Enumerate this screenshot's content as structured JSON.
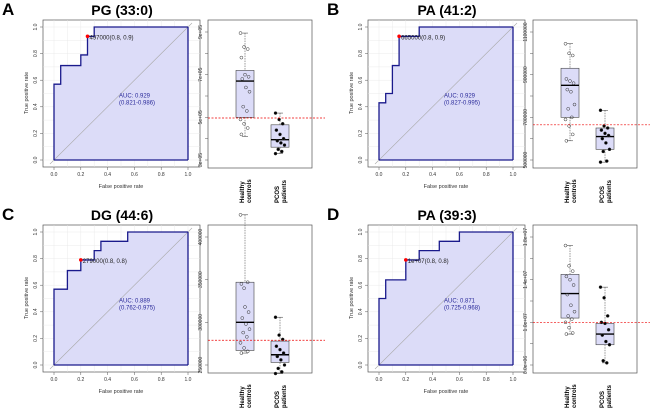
{
  "chart_data": [
    {
      "panel": "A",
      "title": "PG (33:0)",
      "type": "line",
      "roc": {
        "xlabel": "False positive rate",
        "ylabel": "True positive rate",
        "xlim": [
          0,
          1
        ],
        "ylim": [
          0,
          1
        ],
        "ticks": [
          "0.0",
          "0.2",
          "0.4",
          "0.6",
          "0.8",
          "1.0"
        ],
        "points": [
          [
            0,
            0
          ],
          [
            0,
            0.57
          ],
          [
            0.05,
            0.57
          ],
          [
            0.05,
            0.71
          ],
          [
            0.2,
            0.71
          ],
          [
            0.2,
            0.79
          ],
          [
            0.25,
            0.79
          ],
          [
            0.25,
            0.93
          ],
          [
            0.3,
            0.93
          ],
          [
            0.3,
            1
          ],
          [
            1,
            1
          ]
        ],
        "threshold_point": [
          0.25,
          0.93
        ],
        "threshold_label": "497000(0.8, 0.9)",
        "auc_label": "AUC: 0.929",
        "ci_label": "(0.821-0.986)",
        "line_color": "#1a1a8c",
        "fill_color": "#dcdcf8",
        "point_color": "#ff0000"
      },
      "box": {
        "type": "box",
        "ylim": [
          300000,
          900000
        ],
        "tick_values": [
          300000,
          400000,
          500000,
          600000,
          700000,
          800000,
          900000
        ],
        "tick_labels": [
          "3e+05",
          "",
          "5e+05",
          "",
          "7e+05",
          "",
          "9e+05"
        ],
        "cutoff": 497000,
        "groups": [
          {
            "label1": "Healthy",
            "label2": "controls",
            "whisker_low": 410000,
            "q1": 500000,
            "median": 670000,
            "q3": 720000,
            "whisker_high": 895000,
            "filled": false,
            "points": [
              895000,
              830000,
              820000,
              780000,
              700000,
              690000,
              680000,
              640000,
              620000,
              550000,
              530000,
              490000,
              470000,
              450000,
              420000
            ]
          },
          {
            "label1": "PCOS",
            "label2": "patients",
            "whisker_low": 330000,
            "q1": 360000,
            "median": 395000,
            "q3": 465000,
            "whisker_high": 520000,
            "filled": true,
            "points": [
              520000,
              490000,
              470000,
              440000,
              420000,
              400000,
              390000,
              380000,
              370000,
              350000,
              340000,
              330000
            ]
          }
        ]
      }
    },
    {
      "panel": "B",
      "title": "PA (41:2)",
      "type": "line",
      "roc": {
        "xlabel": "False positive rate",
        "ylabel": "True positive rate",
        "xlim": [
          0,
          1
        ],
        "ylim": [
          0,
          1
        ],
        "ticks": [
          "0.0",
          "0.2",
          "0.4",
          "0.6",
          "0.8",
          "1.0"
        ],
        "points": [
          [
            0,
            0
          ],
          [
            0,
            0.43
          ],
          [
            0.05,
            0.43
          ],
          [
            0.05,
            0.5
          ],
          [
            0.1,
            0.5
          ],
          [
            0.1,
            0.71
          ],
          [
            0.15,
            0.71
          ],
          [
            0.15,
            0.93
          ],
          [
            0.3,
            0.93
          ],
          [
            0.3,
            1
          ],
          [
            1,
            1
          ]
        ],
        "threshold_point": [
          0.15,
          0.93
        ],
        "threshold_label": "665000(0.8, 0.9)",
        "auc_label": "AUC: 0.929",
        "ci_label": "(0.827-0.995)",
        "line_color": "#1a1a8c",
        "fill_color": "#dcdcf8",
        "point_color": "#ff0000"
      },
      "box": {
        "type": "box",
        "ylim": [
          500000,
          1100000
        ],
        "tick_values": [
          500000,
          600000,
          700000,
          800000,
          900000,
          1000000,
          1100000
        ],
        "tick_labels": [
          "500000",
          "",
          "700000",
          "",
          "900000",
          "",
          "1100000"
        ],
        "cutoff": 665000,
        "groups": [
          {
            "label1": "Healthy",
            "label2": "controls",
            "whisker_low": 590000,
            "q1": 700000,
            "median": 850000,
            "q3": 930000,
            "whisker_high": 1045000,
            "filled": false,
            "points": [
              1045000,
              1000000,
              990000,
              880000,
              870000,
              860000,
              830000,
              820000,
              760000,
              740000,
              700000,
              690000,
              660000,
              620000,
              590000
            ]
          },
          {
            "label1": "PCOS",
            "label2": "patients",
            "whisker_low": 490000,
            "q1": 550000,
            "median": 610000,
            "q3": 650000,
            "whisker_high": 733000,
            "filled": true,
            "points": [
              733000,
              660000,
              650000,
              640000,
              625000,
              615000,
              600000,
              580000,
              550000,
              540000,
              495000,
              490000
            ]
          }
        ]
      }
    },
    {
      "panel": "C",
      "title": "DG (44:6)",
      "type": "line",
      "roc": {
        "xlabel": "False positive rate",
        "ylabel": "True positive rate",
        "xlim": [
          0,
          1
        ],
        "ylim": [
          0,
          1
        ],
        "ticks": [
          "0.0",
          "0.2",
          "0.4",
          "0.6",
          "0.8",
          "1.0"
        ],
        "points": [
          [
            0,
            0
          ],
          [
            0,
            0.57
          ],
          [
            0.1,
            0.57
          ],
          [
            0.1,
            0.71
          ],
          [
            0.2,
            0.71
          ],
          [
            0.2,
            0.79
          ],
          [
            0.3,
            0.79
          ],
          [
            0.3,
            0.86
          ],
          [
            0.35,
            0.86
          ],
          [
            0.35,
            0.93
          ],
          [
            0.55,
            0.93
          ],
          [
            0.55,
            1
          ],
          [
            1,
            1
          ]
        ],
        "threshold_point": [
          0.2,
          0.79
        ],
        "threshold_label": "279000(0.8, 0.8)",
        "auc_label": "AUC: 0.889",
        "ci_label": "(0.762-0.975)",
        "line_color": "#1a1a8c",
        "fill_color": "#dcdcf8",
        "point_color": "#ff0000"
      },
      "box": {
        "type": "box",
        "ylim": [
          225000,
          425000
        ],
        "tick_values": [
          250000,
          300000,
          350000,
          400000
        ],
        "tick_labels": [
          "250000",
          "300000",
          "350000",
          "400000"
        ],
        "cutoff": 279000,
        "groups": [
          {
            "label1": "Healthy",
            "label2": "controls",
            "whisker_low": 264000,
            "q1": 267000,
            "median": 300000,
            "q3": 347000,
            "whisker_high": 426000,
            "filled": false,
            "points": [
              426000,
              340000,
              347000,
              345000,
              318000,
              312000,
              305000,
              298000,
              292000,
              288000,
              283000,
              276000,
              270000,
              266000,
              264000
            ]
          },
          {
            "label1": "PCOS",
            "label2": "patients",
            "whisker_low": 240000,
            "q1": 253000,
            "median": 262000,
            "q3": 278000,
            "whisker_high": 306000,
            "filled": true,
            "points": [
              306000,
              285000,
              280000,
              272000,
              268000,
              264000,
              260000,
              256000,
              250000,
              246000,
              242000,
              240000
            ]
          }
        ]
      }
    },
    {
      "panel": "D",
      "title": "PA (39:3)",
      "type": "line",
      "roc": {
        "xlabel": "False positive rate",
        "ylabel": "True positive rate",
        "xlim": [
          0,
          1
        ],
        "ylim": [
          0,
          1
        ],
        "ticks": [
          "0.0",
          "0.2",
          "0.4",
          "0.6",
          "0.8",
          "1.0"
        ],
        "points": [
          [
            0,
            0
          ],
          [
            0,
            0.5
          ],
          [
            0.05,
            0.5
          ],
          [
            0.05,
            0.64
          ],
          [
            0.2,
            0.64
          ],
          [
            0.2,
            0.79
          ],
          [
            0.3,
            0.79
          ],
          [
            0.3,
            0.86
          ],
          [
            0.45,
            0.86
          ],
          [
            0.45,
            0.93
          ],
          [
            0.6,
            0.93
          ],
          [
            0.6,
            1
          ],
          [
            1,
            1
          ]
        ],
        "threshold_point": [
          0.2,
          0.79
        ],
        "threshold_label": "1e+07(0.8, 0.8)",
        "auc_label": "AUC: 0.871",
        "ci_label": "(0.725-0.968)",
        "line_color": "#1a1a8c",
        "fill_color": "#dcdcf8",
        "point_color": "#ff0000"
      },
      "box": {
        "type": "box",
        "ylim": [
          5000000,
          19000000
        ],
        "tick_values": [
          6000000,
          8000000,
          10000000,
          12000000,
          14000000,
          16000000,
          18000000
        ],
        "tick_labels": [
          "6.0e+06",
          "",
          "1.0e+07",
          "",
          "1.4e+07",
          "",
          "1.8e+07"
        ],
        "cutoff": 10000000,
        "groups": [
          {
            "label1": "Healthy",
            "label2": "controls",
            "whisker_low": 8900000,
            "q1": 10400000,
            "median": 12700000,
            "q3": 14500000,
            "whisker_high": 17200000,
            "filled": false,
            "points": [
              17200000,
              15300000,
              14800000,
              14300000,
              14000000,
              13500000,
              12600000,
              11600000,
              11000000,
              10600000,
              10300000,
              10000000,
              9500000,
              9000000,
              8900000
            ]
          },
          {
            "label1": "PCOS",
            "label2": "patients",
            "whisker_low": 6200000,
            "q1": 7900000,
            "median": 8900000,
            "q3": 9900000,
            "whisker_high": 13300000,
            "filled": true,
            "points": [
              13300000,
              12300000,
              10600000,
              10000000,
              9900000,
              9300000,
              8800000,
              8200000,
              7900000,
              6400000,
              6200000
            ]
          }
        ]
      }
    }
  ]
}
